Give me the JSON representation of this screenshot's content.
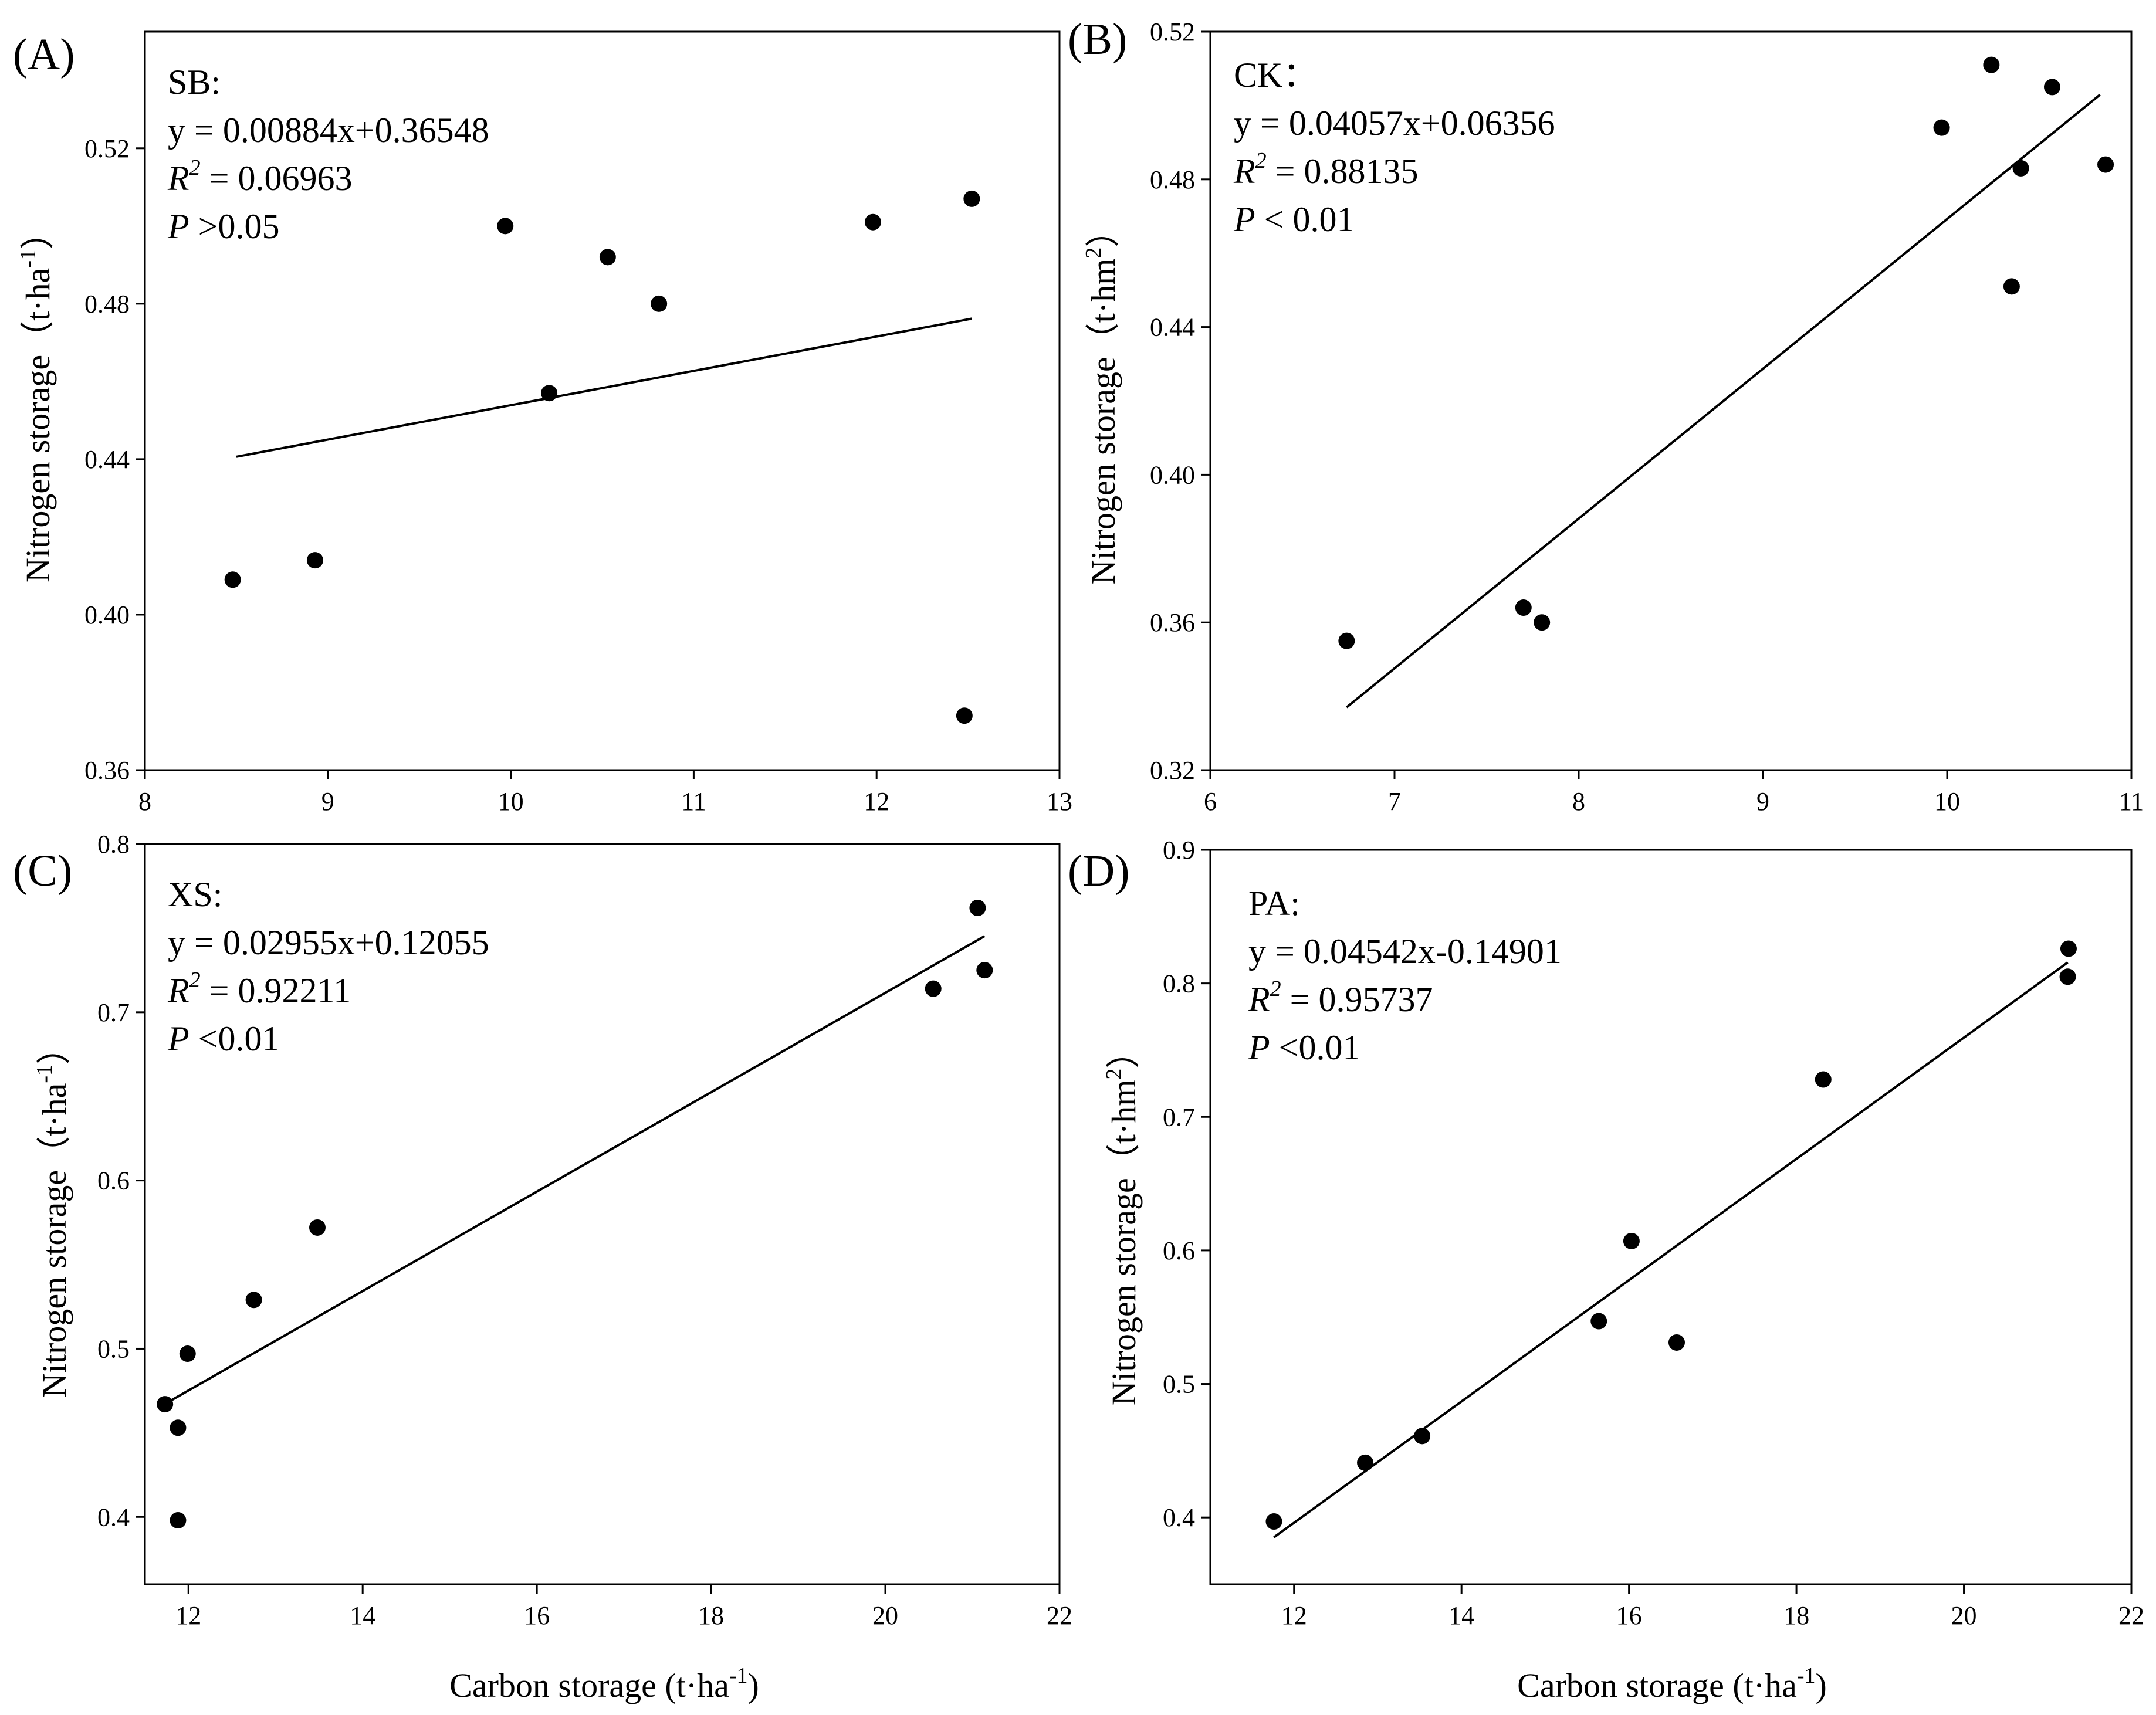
{
  "figure": {
    "background": "#ffffff",
    "ink": "#000000"
  },
  "chart_data": [
    {
      "type": "scatter",
      "panel_label": "(A)",
      "series_name": "SB:",
      "equation": "y =  0.00884x+0.36548",
      "r2_letter": "R",
      "r2_exp": "2",
      "r2_value": " = 0.06963",
      "p_letter": "P",
      "p_value": " >0.05",
      "xlabel": "",
      "ylabel": "Nitrogen storage",
      "yunit": {
        "open": "（t·ha",
        "exp": "-1",
        "close": "）"
      },
      "xlim": [
        8,
        13
      ],
      "ylim": [
        0.36,
        0.55
      ],
      "xticks": [
        8,
        9,
        10,
        11,
        12,
        13
      ],
      "xtick_labels": [
        "8",
        "9",
        "10",
        "11",
        "12",
        "13"
      ],
      "yticks": [
        0.36,
        0.4,
        0.44,
        0.48,
        0.52
      ],
      "ytick_labels": [
        "0.36",
        "0.40",
        "0.44",
        "0.48",
        "0.52"
      ],
      "points": [
        [
          8.48,
          0.409
        ],
        [
          8.93,
          0.414
        ],
        [
          9.97,
          0.5
        ],
        [
          10.21,
          0.457
        ],
        [
          10.53,
          0.492
        ],
        [
          10.81,
          0.48
        ],
        [
          11.98,
          0.501
        ],
        [
          12.52,
          0.507
        ],
        [
          12.48,
          0.374
        ]
      ],
      "fit": {
        "slope": 0.00884,
        "intercept": 0.36548,
        "x_range": [
          8.5,
          12.52
        ]
      }
    },
    {
      "type": "scatter",
      "panel_label": "(B)",
      "series_name": "CK：",
      "equation": "y = 0.04057x+0.06356",
      "r2_letter": "R",
      "r2_exp": "2",
      "r2_value": " = 0.88135",
      "p_letter": "P",
      "p_value": " < 0.01",
      "xlabel": "",
      "ylabel": "Nitrogen storage",
      "yunit": {
        "open": "（t·hm",
        "exp": "2",
        "close": "）"
      },
      "xlim": [
        6,
        11
      ],
      "ylim": [
        0.32,
        0.52
      ],
      "xticks": [
        6,
        7,
        8,
        9,
        10,
        11
      ],
      "xtick_labels": [
        "6",
        "7",
        "8",
        "9",
        "10",
        "11"
      ],
      "yticks": [
        0.32,
        0.36,
        0.4,
        0.44,
        0.48,
        0.52
      ],
      "ytick_labels": [
        "0.32",
        "0.36",
        "0.40",
        "0.44",
        "0.48",
        "0.52"
      ],
      "points": [
        [
          6.74,
          0.355
        ],
        [
          7.7,
          0.364
        ],
        [
          7.8,
          0.36
        ],
        [
          9.97,
          0.494
        ],
        [
          10.24,
          0.511
        ],
        [
          10.35,
          0.451
        ],
        [
          10.4,
          0.483
        ],
        [
          10.57,
          0.505
        ],
        [
          10.86,
          0.484
        ]
      ],
      "fit": {
        "slope": 0.04057,
        "intercept": 0.06356,
        "x_range": [
          6.74,
          10.83
        ]
      }
    },
    {
      "type": "scatter",
      "panel_label": "(C)",
      "series_name": "XS:",
      "equation": "y = 0.02955x+0.12055",
      "r2_letter": "R",
      "r2_exp": "2",
      "r2_value": " = 0.92211",
      "p_letter": "P",
      "p_value": " <0.01",
      "xlabel": "Carbon storage",
      "xunit": {
        "open": "(t·ha",
        "exp": "-1",
        "close": ")"
      },
      "ylabel": "Nitrogen storage",
      "yunit": {
        "open": "（t·ha",
        "exp": "-1",
        "close": "）"
      },
      "xlim": [
        11.5,
        22
      ],
      "ylim": [
        0.36,
        0.8
      ],
      "xticks": [
        12,
        14,
        16,
        18,
        20,
        22
      ],
      "xtick_labels": [
        "12",
        "14",
        "16",
        "18",
        "20",
        "22"
      ],
      "yticks": [
        0.4,
        0.5,
        0.6,
        0.7,
        0.8
      ],
      "ytick_labels": [
        "0.4",
        "0.5",
        "0.6",
        "0.7",
        "0.8"
      ],
      "points": [
        [
          11.73,
          0.467
        ],
        [
          11.88,
          0.453
        ],
        [
          11.88,
          0.398
        ],
        [
          11.99,
          0.497
        ],
        [
          12.75,
          0.529
        ],
        [
          13.48,
          0.572
        ],
        [
          20.55,
          0.714
        ],
        [
          21.06,
          0.762
        ],
        [
          21.14,
          0.725
        ]
      ],
      "fit": {
        "slope": 0.02955,
        "intercept": 0.12055,
        "x_range": [
          11.73,
          21.14
        ]
      }
    },
    {
      "type": "scatter",
      "panel_label": "(D)",
      "series_name": "PA:",
      "equation": "y = 0.04542x-0.14901",
      "r2_letter": "R",
      "r2_exp": "2",
      "r2_value": " = 0.95737",
      "p_letter": "P",
      "p_value": " <0.01",
      "xlabel": "Carbon storage",
      "xunit": {
        "open": "(t·ha",
        "exp": "-1",
        "close": ")"
      },
      "ylabel": "Nitrogen storage",
      "yunit": {
        "open": "（t·hm",
        "exp": "2",
        "close": "）"
      },
      "xlim": [
        11,
        22
      ],
      "ylim": [
        0.35,
        0.9
      ],
      "xticks": [
        12,
        14,
        16,
        18,
        20,
        22
      ],
      "xtick_labels": [
        "12",
        "14",
        "16",
        "18",
        "20",
        "22"
      ],
      "yticks": [
        0.4,
        0.5,
        0.6,
        0.7,
        0.8,
        0.9
      ],
      "ytick_labels": [
        "0.4",
        "0.5",
        "0.6",
        "0.7",
        "0.8",
        "0.9"
      ],
      "points": [
        [
          11.76,
          0.397
        ],
        [
          12.85,
          0.441
        ],
        [
          13.53,
          0.461
        ],
        [
          15.64,
          0.547
        ],
        [
          16.03,
          0.607
        ],
        [
          16.57,
          0.531
        ],
        [
          18.32,
          0.728
        ],
        [
          21.24,
          0.805
        ],
        [
          21.25,
          0.826
        ]
      ],
      "fit": {
        "slope": 0.04542,
        "intercept": -0.14901,
        "x_range": [
          11.76,
          21.24
        ]
      }
    }
  ]
}
